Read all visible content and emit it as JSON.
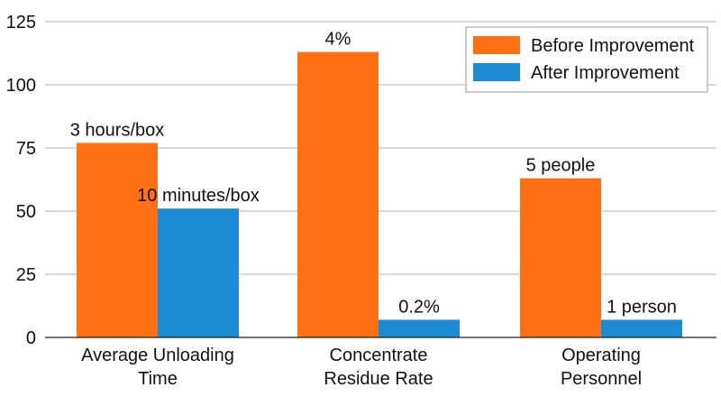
{
  "colors": {
    "before": "#ff6f14",
    "after": "#1a8bd4",
    "grid": "#b0b0b0",
    "axis": "#222222",
    "text": "#111111"
  },
  "chart_data": {
    "type": "bar",
    "categories": [
      "Average Unloading Time",
      "Concentrate Residue Rate",
      "Operating Personnel"
    ],
    "category_lines": [
      [
        "Average Unloading",
        "Time"
      ],
      [
        "Concentrate",
        "Residue Rate"
      ],
      [
        "Operating",
        "Personnel"
      ]
    ],
    "series": [
      {
        "name": "Before Improvement",
        "color": "#ff6f14",
        "values": [
          77,
          113,
          63
        ],
        "labels": [
          "3 hours/box",
          "4%",
          "5 people"
        ]
      },
      {
        "name": "After Improvement",
        "color": "#1a8bd4",
        "values": [
          51,
          7,
          7
        ],
        "labels": [
          "10 minutes/box",
          "0.2%",
          "1 person"
        ]
      }
    ],
    "ylim": [
      0,
      125
    ],
    "yticks": [
      0,
      25,
      50,
      75,
      100,
      125
    ],
    "grid": true,
    "legend_position": "top-right",
    "title": "",
    "xlabel": "",
    "ylabel": ""
  }
}
